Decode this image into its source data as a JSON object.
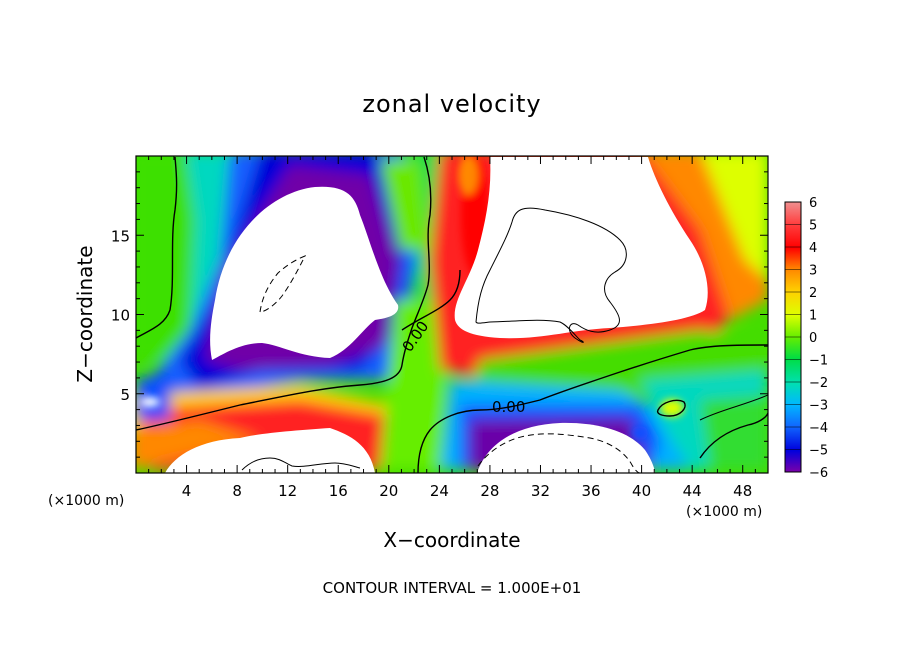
{
  "chart_data": {
    "type": "heatmap",
    "title": "zonal velocity",
    "xlabel": "X−coordinate",
    "ylabel": "Z−coordinate",
    "x_unit": "(×1000 m)",
    "z_unit": "(×1000 m)",
    "xlim": [
      0,
      50
    ],
    "ylim": [
      0,
      20
    ],
    "x_ticks": [
      4,
      8,
      12,
      16,
      20,
      24,
      28,
      32,
      36,
      40,
      44,
      48
    ],
    "x_tick_labels": [
      "4",
      "8",
      "12",
      "16",
      "20",
      "24",
      "28",
      "32",
      "36",
      "40",
      "44",
      "48"
    ],
    "y_ticks": [
      5,
      10,
      15
    ],
    "y_tick_labels": [
      "5",
      "10",
      "15"
    ],
    "colorbar": {
      "min": -6,
      "max": 6,
      "labels": [
        "6",
        "5",
        "4",
        "3",
        "2",
        "1",
        "0",
        "−1",
        "−2",
        "−3",
        "−4",
        "−5",
        "−6"
      ],
      "colors": [
        "#f08080",
        "#ff5050",
        "#ff0000",
        "#ff8800",
        "#ffcc00",
        "#d8ff00",
        "#66ee00",
        "#00dd44",
        "#00e0a0",
        "#00b8ff",
        "#1068ff",
        "#0000dd",
        "#7a00aa"
      ]
    },
    "contour_labels": [
      "0.00",
      "0.00"
    ],
    "footer": "CONTOUR INTERVAL = 1.000E+01",
    "grid": false
  }
}
